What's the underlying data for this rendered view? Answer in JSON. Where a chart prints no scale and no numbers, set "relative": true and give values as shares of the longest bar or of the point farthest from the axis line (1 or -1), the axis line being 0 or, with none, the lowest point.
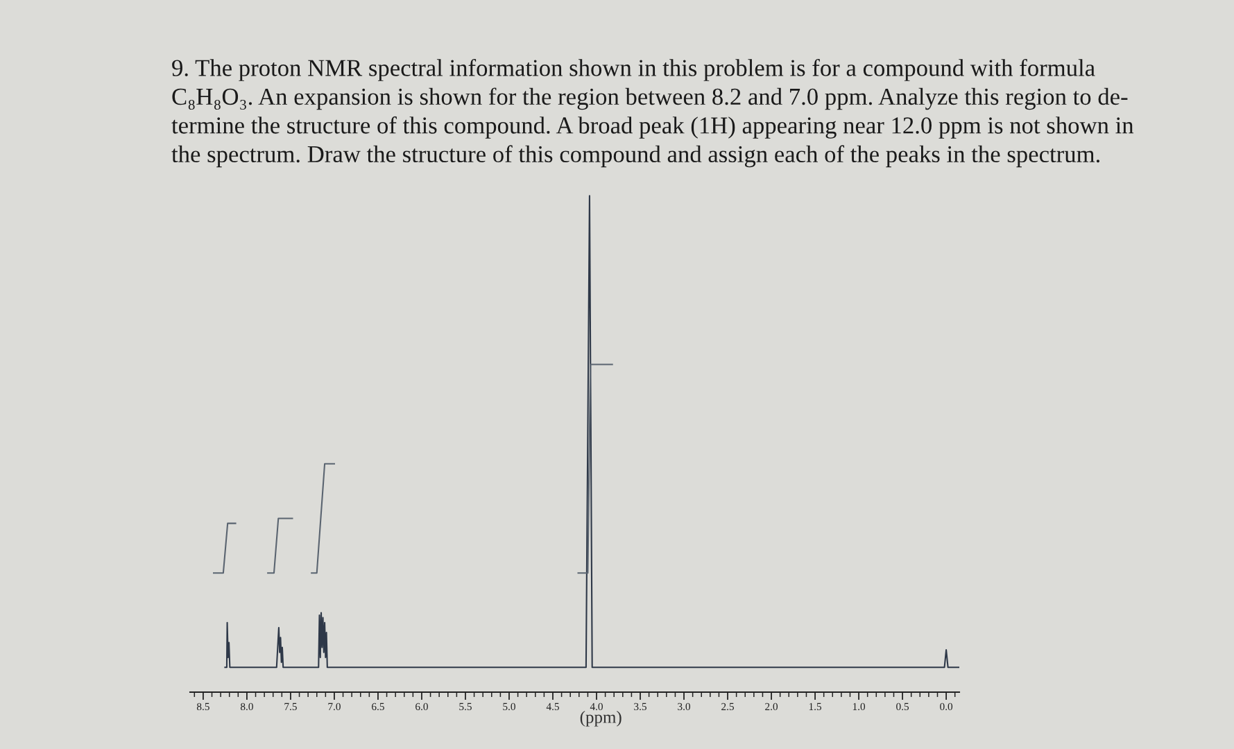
{
  "chart_data": {
    "type": "line",
    "title": "9. The proton NMR spectral information shown in this problem is for a compound with formula\nC₈H₈O₃. An expansion is shown for the region between 8.2 and 7.0 ppm. Analyze this region to de-\ntermine the structure of this compound. A broad peak (1H) appearing near 12.0 ppm is not shown in\nthe spectrum. Draw the structure of this compound and assign each of the peaks in the spectrum.",
    "xlabel": "(ppm)",
    "relative": true,
    "xlim": [
      8.65,
      -0.15
    ],
    "xticks": [
      {
        "value": 8.6,
        "label": null
      },
      8.5,
      {
        "value": 8.4,
        "label": null
      },
      {
        "value": 8.3,
        "label": null
      },
      {
        "value": 8.2,
        "label": null
      },
      {
        "value": 8.1,
        "label": null
      },
      {
        "value": 8,
        "label": "8.0"
      },
      {
        "value": 7.9,
        "label": null
      },
      {
        "value": 7.8,
        "label": null
      },
      {
        "value": 7.7,
        "label": null
      },
      {
        "value": 7.6,
        "label": null
      },
      7.5,
      {
        "value": 7.4,
        "label": null
      },
      {
        "value": 7.3,
        "label": null
      },
      {
        "value": 7.2,
        "label": null
      },
      {
        "value": 7.1,
        "label": null
      },
      {
        "value": 7,
        "label": "7.0"
      },
      {
        "value": 6.9,
        "label": null
      },
      {
        "value": 6.8,
        "label": null
      },
      {
        "value": 6.7,
        "label": null
      },
      {
        "value": 6.6,
        "label": null
      },
      6.5,
      {
        "value": 6.4,
        "label": null
      },
      {
        "value": 6.3,
        "label": null
      },
      {
        "value": 6.2,
        "label": null
      },
      {
        "value": 6.1,
        "label": null
      },
      {
        "value": 6,
        "label": "6.0"
      },
      {
        "value": 5.9,
        "label": null
      },
      {
        "value": 5.8,
        "label": null
      },
      {
        "value": 5.7,
        "label": null
      },
      {
        "value": 5.6,
        "label": null
      },
      5.5,
      {
        "value": 5.4,
        "label": null
      },
      {
        "value": 5.3,
        "label": null
      },
      {
        "value": 5.2,
        "label": null
      },
      {
        "value": 5.1,
        "label": null
      },
      {
        "value": 5,
        "label": "5.0"
      },
      {
        "value": 4.9,
        "label": null
      },
      {
        "value": 4.8,
        "label": null
      },
      {
        "value": 4.7,
        "label": null
      },
      {
        "value": 4.6,
        "label": null
      },
      4.5,
      {
        "value": 4.4,
        "label": null
      },
      {
        "value": 4.3,
        "label": null
      },
      {
        "value": 4.2,
        "label": null
      },
      {
        "value": 4.1,
        "label": null
      },
      {
        "value": 4,
        "label": "4.0"
      },
      {
        "value": 3.9,
        "label": null
      },
      {
        "value": 3.8,
        "label": null
      },
      {
        "value": 3.7,
        "label": null
      },
      {
        "value": 3.6,
        "label": null
      },
      3.5,
      {
        "value": 3.4,
        "label": null
      },
      {
        "value": 3.3,
        "label": null
      },
      {
        "value": 3.2,
        "label": null
      },
      {
        "value": 3.1,
        "label": null
      },
      {
        "value": 3,
        "label": "3.0"
      },
      {
        "value": 2.9,
        "label": null
      },
      {
        "value": 2.8,
        "label": null
      },
      {
        "value": 2.7,
        "label": null
      },
      {
        "value": 2.6,
        "label": null
      },
      2.5,
      {
        "value": 2.4,
        "label": null
      },
      {
        "value": 2.3,
        "label": null
      },
      {
        "value": 2.2,
        "label": null
      },
      {
        "value": 2.1,
        "label": null
      },
      {
        "value": 2,
        "label": "2.0"
      },
      {
        "value": 1.9,
        "label": null
      },
      {
        "value": 1.8,
        "label": null
      },
      {
        "value": 1.7,
        "label": null
      },
      {
        "value": 1.6,
        "label": null
      },
      1.5,
      {
        "value": 1.4,
        "label": null
      },
      {
        "value": 1.3,
        "label": null
      },
      {
        "value": 1.2,
        "label": null
      },
      {
        "value": 1.1,
        "label": null
      },
      {
        "value": 1,
        "label": "1.0"
      },
      {
        "value": 0.9,
        "label": null
      },
      {
        "value": 0.8,
        "label": null
      },
      {
        "value": 0.7,
        "label": null
      },
      {
        "value": 0.6,
        "label": null
      },
      0.5,
      {
        "value": 0.4,
        "label": null
      },
      {
        "value": 0.3,
        "label": null
      },
      {
        "value": 0.2,
        "label": null
      },
      {
        "value": 0.1,
        "label": null
      },
      {
        "value": 0,
        "label": "0.0"
      },
      {
        "value": -0.1,
        "label": null
      }
    ],
    "series": [
      {
        "color": "#2e3848",
        "x": [
          8.25,
          8.23,
          8.225,
          8.215,
          8.205,
          8.195,
          7.66,
          7.635,
          7.625,
          7.615,
          7.605,
          7.595,
          7.585,
          7.18,
          7.17,
          7.16,
          7.15,
          7.14,
          7.13,
          7.12,
          7.11,
          7.1,
          7.09,
          7.08,
          4.12,
          4.08,
          4.05,
          0.02,
          0.0,
          -0.02,
          -0.15
        ],
        "values": [
          0.05,
          0.05,
          0.14,
          0.07,
          0.1,
          0.05,
          0.05,
          0.13,
          0.08,
          0.11,
          0.06,
          0.09,
          0.05,
          0.05,
          0.155,
          0.07,
          0.16,
          0.09,
          0.15,
          0.08,
          0.14,
          0.07,
          0.12,
          0.05,
          0.05,
          1.0,
          0.05,
          0.05,
          0.085,
          0.05,
          0.05
        ]
      },
      {
        "color": "#5a6470",
        "x": [
          8.38,
          8.27,
          8.22,
          8.13,
          8.0,
          7.76,
          7.69,
          7.64,
          7.48,
          7.4,
          7.26,
          7.2,
          7.11,
          7.0,
          5.0,
          4.21,
          4.1,
          4.07,
          4.0,
          3.82
        ],
        "values": [
          0.24,
          0.24,
          0.34,
          0.34,
          null,
          0.24,
          0.24,
          0.35,
          0.35,
          null,
          0.24,
          0.24,
          0.46,
          0.46,
          null,
          0.24,
          0.24,
          0.66,
          0.66,
          0.66
        ]
      }
    ]
  }
}
